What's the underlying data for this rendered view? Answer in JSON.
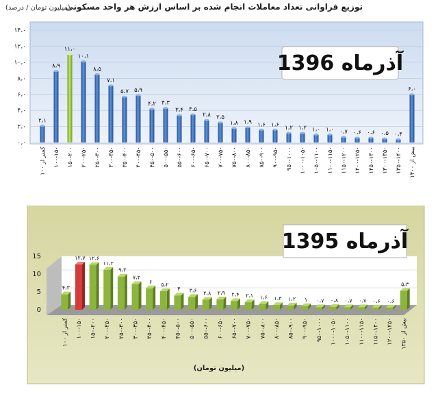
{
  "header": {
    "title": "توزیع فراوانی تعداد معاملات انجام شده بر اساس ارزش هر واحد مسکونی",
    "unit": "(میلیون تومان / درصد)"
  },
  "chart_data": [
    {
      "type": "bar",
      "title": "آذرماه 1396",
      "categories": [
        "کمتر از ۱۰۰",
        "۱۰۰-۱۵۰",
        "۱۵۰-۲۰۰",
        "۲۰۰-۲۵۰",
        "۲۵۰-۳۰۰",
        "۳۰۰-۳۵۰",
        "۳۵۰-۴۰۰",
        "۴۰۰-۴۵۰",
        "۴۵۰-۵۰۰",
        "۵۰۰-۵۵۰",
        "۵۵۰-۶۰۰",
        "۶۰۰-۶۵۰",
        "۶۵۰-۷۰۰",
        "۷۰۰-۷۵۰",
        "۷۵۰-۸۰۰",
        "۸۰۰-۸۵۰",
        "۸۵۰-۹۰۰",
        "۹۰۰-۹۵۰",
        "۹۵۰-۱۰۰۰",
        "۱۰۰۰-۱۰۵۰",
        "۱۰۵۰-۱۱۰۰",
        "۱۱۰۰-۱۱۵۰",
        "۱۱۵۰-۱۲۰۰",
        "۱۲۰۰-۱۲۵۰",
        "۱۲۵۰-۱۳۰۰",
        "۱۳۰۰-۱۳۵۰",
        "۱۳۵۰-۱۴۰۰",
        "بیش از ۱۴۰۰"
      ],
      "values": [
        2.1,
        8.9,
        11.0,
        10.1,
        8.5,
        7.1,
        5.7,
        5.9,
        4.2,
        4.3,
        3.4,
        3.5,
        2.8,
        2.5,
        1.8,
        1.9,
        1.6,
        1.6,
        1.2,
        1.2,
        1.0,
        1.0,
        0.7,
        0.6,
        0.6,
        0.5,
        0.4,
        6.0
      ],
      "value_labels": [
        "۲،۱",
        "۸،۹",
        "۱۱،۰",
        "۱۰،۱",
        "۸،۵",
        "۷،۱",
        "۵،۷",
        "۵،۹",
        "۴،۲",
        "۴،۳",
        "۳،۴",
        "۳،۵",
        "۲،۸",
        "۲،۵",
        "۱،۸",
        "۱،۹",
        "۱،۶",
        "۱،۶",
        "۱،۲",
        "۱،۲",
        "۱،۰",
        "۱،۰",
        "۰،۷",
        "۰،۶",
        "۰،۶",
        "۰،۵",
        "۰،۴",
        "۶،۰"
      ],
      "highlight_index": 2,
      "ylim": [
        0,
        14
      ],
      "y_ticks": [
        "۰،۰",
        "۲،۰",
        "۴،۰",
        "۶،۰",
        "۸،۰",
        "۱۰،۰",
        "۱۲،۰",
        "۱۴،۰"
      ],
      "grid": true,
      "colors": {
        "bar": "#3a6db5",
        "highlight": "#9cc63b",
        "plot_bg": "#dbe7f5"
      }
    },
    {
      "type": "bar",
      "title": "آذرماه 1395",
      "xlabel": "(میلیون تومان)",
      "categories": [
        "کمتر از ۱۰۰",
        "۱۰۰-۱۵۰",
        "۱۵۰-۲۰۰",
        "۲۰۰-۲۵۰",
        "۲۵۰-۳۰۰",
        "۳۰۰-۳۵۰",
        "۳۵۰-۴۰۰",
        "۴۰۰-۴۵۰",
        "۴۵۰-۵۰۰",
        "۵۰۰-۵۵۰",
        "۵۵۰-۶۰۰",
        "۶۰۰-۶۵۰",
        "۶۵۰-۷۰۰",
        "۷۰۰-۷۵۰",
        "۷۵۰-۸۰۰",
        "۸۰۰-۸۵۰",
        "۸۵۰-۹۰۰",
        "۹۰۰-۹۵۰",
        "۹۵۰-۱۰۰۰",
        "۱۰۰۰-۱۰۵۰",
        "۱۰۵۰-۱۱۰۰",
        "۱۱۰۰-۱۱۵۰",
        "۱۱۵۰-۱۲۰۰",
        "۱۲۰۰-۱۲۵۰",
        "بیش از ۱۲۵۰"
      ],
      "values": [
        4.3,
        12.7,
        12.6,
        11.2,
        9.3,
        7.2,
        6.0,
        5.2,
        4.0,
        3.6,
        2.8,
        2.9,
        2.4,
        2.1,
        1.6,
        1.3,
        1.2,
        1.0,
        0.7,
        0.8,
        0.7,
        0.7,
        0.6,
        0.6,
        5.3
      ],
      "value_labels": [
        "۴،۳",
        "۱۲،۷",
        "۱۲،۶",
        "۱۱،۲",
        "۹،۳",
        "۷،۲",
        "۶",
        "۵،۲",
        "۴",
        "۳،۶",
        "۲،۸",
        "۲،۹",
        "۲،۴",
        "۲،۱",
        "۱،۶",
        "۱،۳",
        "۱،۲",
        "۱",
        "۰،۷",
        "۰،۸",
        "۰،۷",
        "۰،۷",
        "۰،۶",
        "۰،۶",
        "۵،۳"
      ],
      "highlight_index": 1,
      "ylim": [
        0,
        15
      ],
      "y_ticks": [
        "0",
        "5",
        "10",
        "15"
      ],
      "grid": true,
      "colors": {
        "bar": "#8db43c",
        "highlight": "#d93a3a",
        "plot_bg": "#ffffff",
        "frame_bg": "#d9d9a6"
      }
    }
  ]
}
